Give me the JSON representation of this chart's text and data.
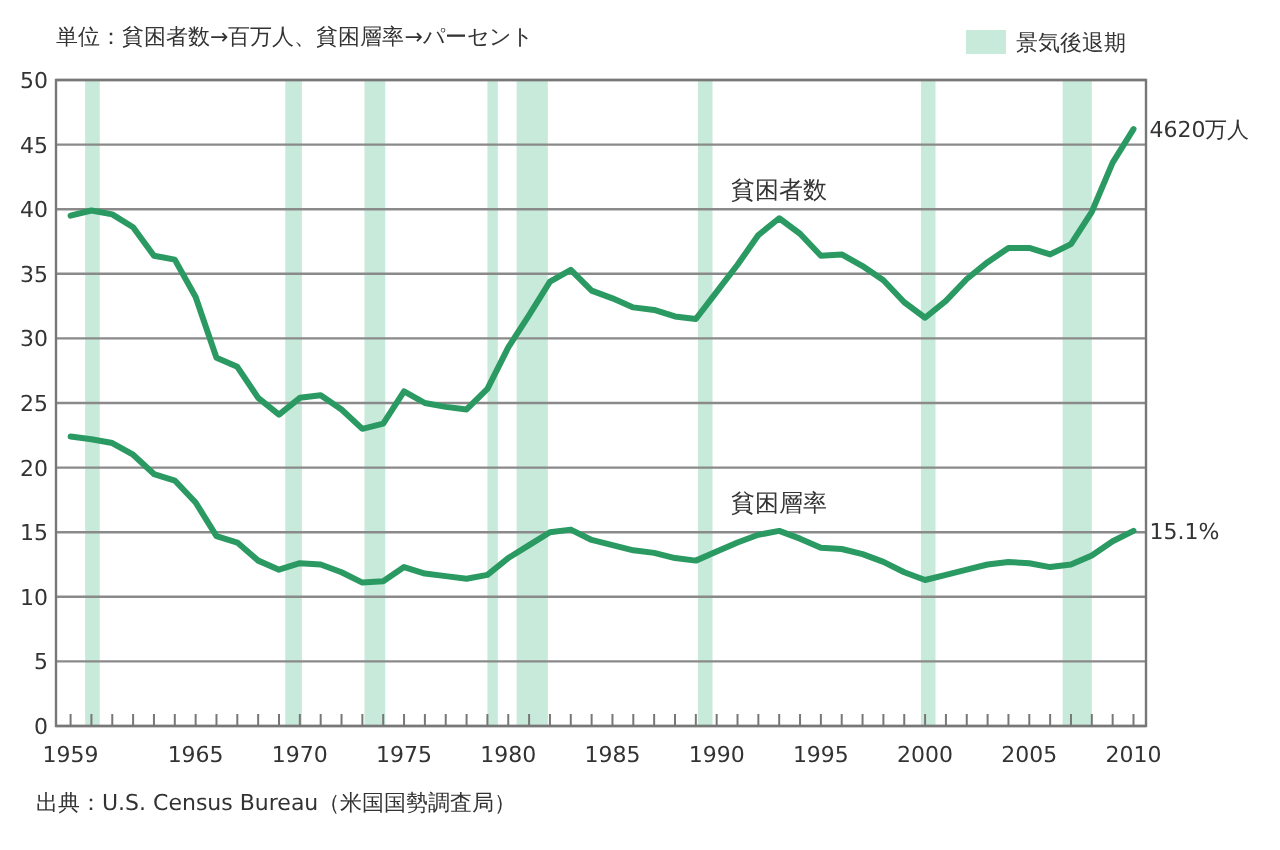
{
  "chart_data": {
    "type": "line",
    "title": "単位：貧困者数→百万人、貧困層率→パーセント",
    "x": [
      1959,
      1960,
      1961,
      1962,
      1963,
      1964,
      1965,
      1966,
      1967,
      1968,
      1969,
      1970,
      1971,
      1972,
      1973,
      1974,
      1975,
      1976,
      1977,
      1978,
      1979,
      1980,
      1981,
      1982,
      1983,
      1984,
      1985,
      1986,
      1987,
      1988,
      1989,
      1990,
      1991,
      1992,
      1993,
      1994,
      1995,
      1996,
      1997,
      1998,
      1999,
      2000,
      2001,
      2002,
      2003,
      2004,
      2005,
      2006,
      2007,
      2008,
      2009,
      2010
    ],
    "series": [
      {
        "name": "貧困者数",
        "color": "#2a9a62",
        "values": [
          39.5,
          39.9,
          39.6,
          38.6,
          36.4,
          36.1,
          33.2,
          28.5,
          27.8,
          25.4,
          24.1,
          25.4,
          25.6,
          24.5,
          23.0,
          23.4,
          25.9,
          25.0,
          24.7,
          24.5,
          26.1,
          29.3,
          31.8,
          34.4,
          35.3,
          33.7,
          33.1,
          32.4,
          32.2,
          31.7,
          31.5,
          33.6,
          35.7,
          38.0,
          39.3,
          38.1,
          36.4,
          36.5,
          35.6,
          34.5,
          32.8,
          31.6,
          32.9,
          34.6,
          35.9,
          37.0,
          37.0,
          36.5,
          37.3,
          39.8,
          43.6,
          46.2
        ]
      },
      {
        "name": "貧困層率",
        "color": "#2a9a62",
        "values": [
          22.4,
          22.2,
          21.9,
          21.0,
          19.5,
          19.0,
          17.3,
          14.7,
          14.2,
          12.8,
          12.1,
          12.6,
          12.5,
          11.9,
          11.1,
          11.2,
          12.3,
          11.8,
          11.6,
          11.4,
          11.7,
          13.0,
          14.0,
          15.0,
          15.2,
          14.4,
          14.0,
          13.6,
          13.4,
          13.0,
          12.8,
          13.5,
          14.2,
          14.8,
          15.1,
          14.5,
          13.8,
          13.7,
          13.3,
          12.7,
          11.9,
          11.3,
          11.7,
          12.1,
          12.5,
          12.7,
          12.6,
          12.3,
          12.5,
          13.2,
          14.3,
          15.1
        ]
      }
    ],
    "xlim": [
      1958.3,
      2010.6
    ],
    "xticks": [
      {
        "value": 1959,
        "label": "1959"
      },
      {
        "value": 1960,
        "label": null
      },
      {
        "value": 1961,
        "label": null
      },
      {
        "value": 1962,
        "label": null
      },
      {
        "value": 1963,
        "label": null
      },
      {
        "value": 1964,
        "label": null
      },
      1965,
      {
        "value": 1966,
        "label": null
      },
      {
        "value": 1967,
        "label": null
      },
      {
        "value": 1968,
        "label": null
      },
      {
        "value": 1969,
        "label": null
      },
      1970,
      {
        "value": 1971,
        "label": null
      },
      {
        "value": 1972,
        "label": null
      },
      {
        "value": 1973,
        "label": null
      },
      {
        "value": 1974,
        "label": null
      },
      1975,
      {
        "value": 1976,
        "label": null
      },
      {
        "value": 1977,
        "label": null
      },
      {
        "value": 1978,
        "label": null
      },
      {
        "value": 1979,
        "label": null
      },
      1980,
      {
        "value": 1981,
        "label": null
      },
      {
        "value": 1982,
        "label": null
      },
      {
        "value": 1983,
        "label": null
      },
      {
        "value": 1984,
        "label": null
      },
      1985,
      {
        "value": 1986,
        "label": null
      },
      {
        "value": 1987,
        "label": null
      },
      {
        "value": 1988,
        "label": null
      },
      {
        "value": 1989,
        "label": null
      },
      1990,
      {
        "value": 1991,
        "label": null
      },
      {
        "value": 1992,
        "label": null
      },
      {
        "value": 1993,
        "label": null
      },
      {
        "value": 1994,
        "label": null
      },
      1995,
      {
        "value": 1996,
        "label": null
      },
      {
        "value": 1997,
        "label": null
      },
      {
        "value": 1998,
        "label": null
      },
      {
        "value": 1999,
        "label": null
      },
      2000,
      {
        "value": 2001,
        "label": null
      },
      {
        "value": 2002,
        "label": null
      },
      {
        "value": 2003,
        "label": null
      },
      {
        "value": 2004,
        "label": null
      },
      2005,
      {
        "value": 2006,
        "label": null
      },
      {
        "value": 2007,
        "label": null
      },
      {
        "value": 2008,
        "label": null
      },
      {
        "value": 2009,
        "label": null
      },
      2010
    ],
    "ylim": [
      0,
      50
    ],
    "yticks": [
      0,
      5,
      10,
      15,
      20,
      25,
      30,
      35,
      40,
      45,
      50
    ],
    "grid": "y",
    "marker": "none",
    "line_style": "solid",
    "legend": "top right",
    "bands": [
      {
        "axis": "x",
        "from": 1959.7,
        "to": 1960.4,
        "label": "景気後退期",
        "color": "#c8eadb"
      },
      {
        "axis": "x",
        "from": 1969.3,
        "to": 1970.1,
        "color": "#c8eadb"
      },
      {
        "axis": "x",
        "from": 1973.1,
        "to": 1974.1,
        "color": "#c8eadb"
      },
      {
        "axis": "x",
        "from": 1979.0,
        "to": 1979.5,
        "color": "#c8eadb"
      },
      {
        "axis": "x",
        "from": 1980.4,
        "to": 1981.9,
        "color": "#c8eadb"
      },
      {
        "axis": "x",
        "from": 1989.1,
        "to": 1989.8,
        "color": "#c8eadb"
      },
      {
        "axis": "x",
        "from": 1999.8,
        "to": 2000.5,
        "color": "#c8eadb"
      },
      {
        "axis": "x",
        "from": 2006.6,
        "to": 2008.0,
        "color": "#c8eadb"
      }
    ],
    "annotations": [
      {
        "text": "4620万人",
        "x": 2010,
        "y": 46.2
      },
      {
        "text": "15.1%",
        "x": 2010,
        "y": 15.1
      },
      "出典：U.S. Census Bureau（米国国勢調査局）"
    ]
  }
}
